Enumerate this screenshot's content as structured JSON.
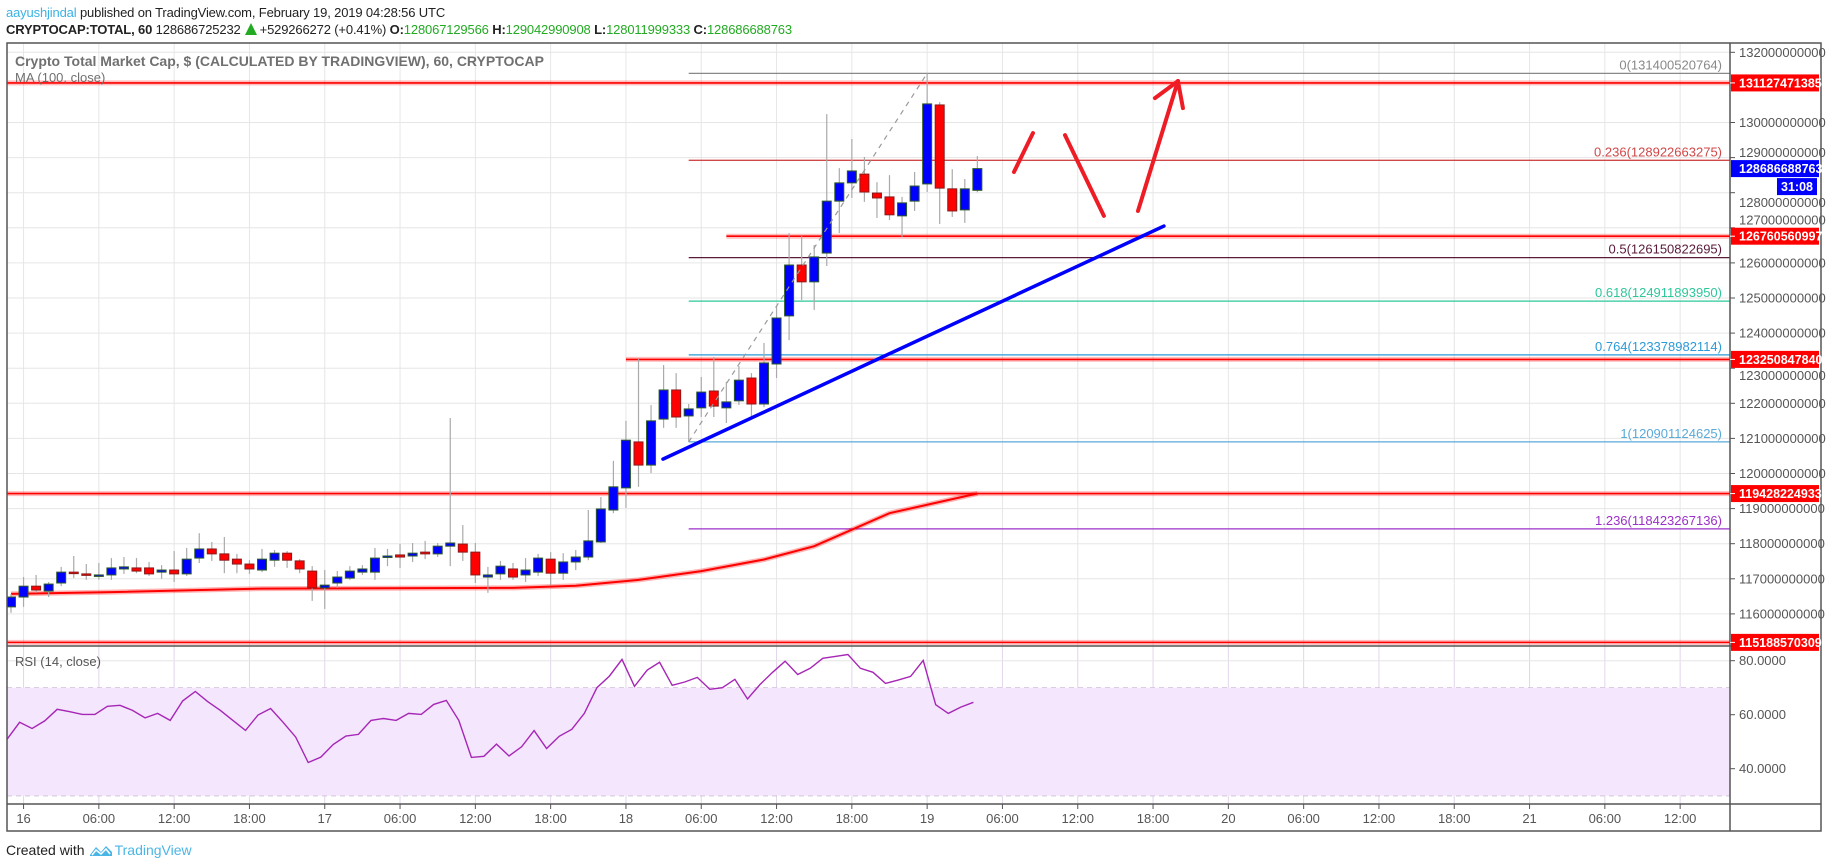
{
  "header": {
    "author": "aayushjindal",
    "published": "published on TradingView.com, February 19, 2019 04:28:56 UTC",
    "symbol": "CRYPTOCAP:TOTAL, 60",
    "last": "128686725232",
    "change_direction": "up",
    "change": "+529266272 (+0.41%)",
    "ohlc": [
      {
        "key": "O:",
        "value": "128067129566"
      },
      {
        "key": "H:",
        "value": "129042990908"
      },
      {
        "key": "L:",
        "value": "128011999333"
      },
      {
        "key": "C:",
        "value": "128686688763"
      }
    ]
  },
  "colors": {
    "up_candle": "#0000ff",
    "up_border": "#2d5a27",
    "down_candle": "#ff0000",
    "down_border": "#8b1a1a",
    "wick": "#aaaaaa",
    "ma": "#ff0000",
    "rsi": "#a626b5",
    "rsi_band_fill": "#f3e6fd",
    "trendline": "#0000ff",
    "arrows": "#ee1c25",
    "level": "#ff0000",
    "current_price": "#0000ff",
    "grid": "#e6e6e6"
  },
  "chart_data": {
    "type": "candlestick",
    "title": "Crypto Total Market Cap, $ (CALCULATED BY TRADINGVIEW), 60, CRYPTOCAP",
    "interval": "60",
    "grid": true,
    "y_ticks": [
      132000000000,
      130000000000,
      129000000000,
      128000000000,
      127000000000,
      126000000000,
      125000000000,
      124000000000,
      123000000000,
      122000000000,
      121000000000,
      120000000000,
      119000000000,
      118000000000,
      117000000000,
      116000000000
    ],
    "x_ticks": [
      {
        "t": "16 00:00",
        "label": "16"
      },
      {
        "t": "16 06:00",
        "label": "06:00"
      },
      {
        "t": "16 12:00",
        "label": "12:00"
      },
      {
        "t": "16 18:00",
        "label": "18:00"
      },
      {
        "t": "17 00:00",
        "label": "17"
      },
      {
        "t": "17 06:00",
        "label": "06:00"
      },
      {
        "t": "17 12:00",
        "label": "12:00"
      },
      {
        "t": "17 18:00",
        "label": "18:00"
      },
      {
        "t": "18 00:00",
        "label": "18"
      },
      {
        "t": "18 06:00",
        "label": "06:00"
      },
      {
        "t": "18 12:00",
        "label": "12:00"
      },
      {
        "t": "18 18:00",
        "label": "18:00"
      },
      {
        "t": "19 00:00",
        "label": "19"
      },
      {
        "t": "19 06:00",
        "label": "06:00"
      },
      {
        "t": "19 12:00",
        "label": "12:00"
      },
      {
        "t": "19 18:00",
        "label": "18:00"
      },
      {
        "t": "20 00:00",
        "label": "20"
      },
      {
        "t": "20 06:00",
        "label": "06:00"
      },
      {
        "t": "20 12:00",
        "label": "12:00"
      },
      {
        "t": "20 18:00",
        "label": "18:00"
      },
      {
        "t": "21 00:00",
        "label": "21"
      },
      {
        "t": "21 06:00",
        "label": "06:00"
      },
      {
        "t": "21 12:00",
        "label": "12:00"
      }
    ],
    "candles_columns": [
      "time",
      "open",
      "high",
      "low",
      "close"
    ],
    "candles": [
      [
        "15 23:00",
        116200000000.0,
        116570000000.0,
        116030000000.0,
        116480000000.0
      ],
      [
        "16 00:00",
        116480000000.0,
        117050000000.0,
        116200000000.0,
        116790000000.0
      ],
      [
        "16 01:00",
        116790000000.0,
        117110000000.0,
        116600000000.0,
        116680000000.0
      ],
      [
        "16 02:00",
        116650000000.0,
        116910000000.0,
        116480000000.0,
        116850000000.0
      ],
      [
        "16 03:00",
        116880000000.0,
        117340000000.0,
        116790000000.0,
        117190000000.0
      ],
      [
        "16 04:00",
        117190000000.0,
        117650000000.0,
        117020000000.0,
        117160000000.0
      ],
      [
        "16 05:00",
        117140000000.0,
        117420000000.0,
        116970000000.0,
        117110000000.0
      ],
      [
        "16 06:00",
        117080000000.0,
        117450000000.0,
        116970000000.0,
        117110000000.0
      ],
      [
        "16 07:00",
        117110000000.0,
        117590000000.0,
        116970000000.0,
        117310000000.0
      ],
      [
        "16 08:00",
        117280000000.0,
        117620000000.0,
        117140000000.0,
        117340000000.0
      ],
      [
        "16 09:00",
        117310000000.0,
        117590000000.0,
        117160000000.0,
        117220000000.0
      ],
      [
        "16 10:00",
        117310000000.0,
        117480000000.0,
        117080000000.0,
        117140000000.0
      ],
      [
        "16 11:00",
        117190000000.0,
        117390000000.0,
        117000000000.0,
        117250000000.0
      ],
      [
        "16 12:00",
        117250000000.0,
        117790000000.0,
        116910000000.0,
        117140000000.0
      ],
      [
        "16 13:00",
        117140000000.0,
        117880000000.0,
        117080000000.0,
        117560000000.0
      ],
      [
        "16 14:00",
        117590000000.0,
        118300000000.0,
        117450000000.0,
        117850000000.0
      ],
      [
        "16 15:00",
        117850000000.0,
        118050000000.0,
        117510000000.0,
        117710000000.0
      ],
      [
        "16 16:00",
        117710000000.0,
        118190000000.0,
        117160000000.0,
        117530000000.0
      ],
      [
        "16 17:00",
        117560000000.0,
        117710000000.0,
        117160000000.0,
        117420000000.0
      ],
      [
        "16 18:00",
        117420000000.0,
        117530000000.0,
        117140000000.0,
        117280000000.0
      ],
      [
        "16 19:00",
        117250000000.0,
        117850000000.0,
        117190000000.0,
        117560000000.0
      ],
      [
        "16 20:00",
        117530000000.0,
        117820000000.0,
        117340000000.0,
        117730000000.0
      ],
      [
        "16 21:00",
        117730000000.0,
        117790000000.0,
        117310000000.0,
        117530000000.0
      ],
      [
        "16 22:00",
        117510000000.0,
        117560000000.0,
        117160000000.0,
        117280000000.0
      ],
      [
        "16 23:00",
        117220000000.0,
        117360000000.0,
        116370000000.0,
        116740000000.0
      ],
      [
        "17 00:00",
        116740000000.0,
        117250000000.0,
        116140000000.0,
        116820000000.0
      ],
      [
        "17 01:00",
        116880000000.0,
        117220000000.0,
        116740000000.0,
        117050000000.0
      ],
      [
        "17 02:00",
        117020000000.0,
        117360000000.0,
        116970000000.0,
        117220000000.0
      ],
      [
        "17 03:00",
        117190000000.0,
        117390000000.0,
        117110000000.0,
        117280000000.0
      ],
      [
        "17 04:00",
        117190000000.0,
        117880000000.0,
        116970000000.0,
        117590000000.0
      ],
      [
        "17 05:00",
        117620000000.0,
        117850000000.0,
        117360000000.0,
        117650000000.0
      ],
      [
        "17 06:00",
        117680000000.0,
        117990000000.0,
        117310000000.0,
        117620000000.0
      ],
      [
        "17 07:00",
        117650000000.0,
        118020000000.0,
        117480000000.0,
        117730000000.0
      ],
      [
        "17 08:00",
        117760000000.0,
        118080000000.0,
        117560000000.0,
        117710000000.0
      ],
      [
        "17 09:00",
        117710000000.0,
        118020000000.0,
        117620000000.0,
        117930000000.0
      ],
      [
        "17 10:00",
        117930000000.0,
        121580000000.0,
        117360000000.0,
        118020000000.0
      ],
      [
        "17 11:00",
        117990000000.0,
        118530000000.0,
        117510000000.0,
        117760000000.0
      ],
      [
        "17 12:00",
        117760000000.0,
        118020000000.0,
        116880000000.0,
        117110000000.0
      ],
      [
        "17 13:00",
        117050000000.0,
        117340000000.0,
        116600000000.0,
        117110000000.0
      ],
      [
        "17 14:00",
        117140000000.0,
        117510000000.0,
        116970000000.0,
        117360000000.0
      ],
      [
        "17 15:00",
        117280000000.0,
        117450000000.0,
        116970000000.0,
        117050000000.0
      ],
      [
        "17 16:00",
        117110000000.0,
        117590000000.0,
        116910000000.0,
        117250000000.0
      ],
      [
        "17 17:00",
        117190000000.0,
        117710000000.0,
        117080000000.0,
        117590000000.0
      ],
      [
        "17 18:00",
        117560000000.0,
        117760000000.0,
        116820000000.0,
        117160000000.0
      ],
      [
        "17 19:00",
        117160000000.0,
        117730000000.0,
        116970000000.0,
        117480000000.0
      ],
      [
        "17 20:00",
        117480000000.0,
        117820000000.0,
        117250000000.0,
        117620000000.0
      ],
      [
        "17 21:00",
        117620000000.0,
        118960000000.0,
        117530000000.0,
        118080000000.0
      ],
      [
        "17 22:00",
        118050000000.0,
        119330000000.0,
        118020000000.0,
        118990000000.0
      ],
      [
        "17 23:00",
        118960000000.0,
        120360000000.0,
        118870000000.0,
        119620000000.0
      ],
      [
        "18 00:00",
        119590000000.0,
        121500000000.0,
        119020000000.0,
        120950000000.0
      ],
      [
        "18 01:00",
        120900000000.0,
        123260000000.0,
        119620000000.0,
        120240000000.0
      ],
      [
        "18 02:00",
        120240000000.0,
        121950000000.0,
        120010000000.0,
        121500000000.0
      ],
      [
        "18 03:00",
        121550000000.0,
        123090000000.0,
        121300000000.0,
        122380000000.0
      ],
      [
        "18 04:00",
        122380000000.0,
        122860000000.0,
        121300000000.0,
        121610000000.0
      ],
      [
        "18 05:00",
        121640000000.0,
        121980000000.0,
        120900000000.0,
        121840000000.0
      ],
      [
        "18 06:00",
        121870000000.0,
        122750000000.0,
        121610000000.0,
        122320000000.0
      ],
      [
        "18 07:00",
        122350000000.0,
        123320000000.0,
        121610000000.0,
        121920000000.0
      ],
      [
        "18 08:00",
        121870000000.0,
        122610000000.0,
        121440000000.0,
        122040000000.0
      ],
      [
        "18 09:00",
        122070000000.0,
        123060000000.0,
        121950000000.0,
        122660000000.0
      ],
      [
        "18 10:00",
        122720000000.0,
        122860000000.0,
        121610000000.0,
        121980000000.0
      ],
      [
        "18 11:00",
        121980000000.0,
        123720000000.0,
        121890000000.0,
        123150000000.0
      ],
      [
        "18 12:00",
        123120000000.0,
        124770000000.0,
        122720000000.0,
        124430000000.0
      ],
      [
        "18 13:00",
        124490000000.0,
        126850000000.0,
        123800000000.0,
        125940000000.0
      ],
      [
        "18 14:00",
        125940000000.0,
        126770000000.0,
        124940000000.0,
        125460000000.0
      ],
      [
        "18 15:00",
        125460000000.0,
        126510000000.0,
        124660000000.0,
        126170000000.0
      ],
      [
        "18 16:00",
        126280000000.0,
        130240000000.0,
        125910000000.0,
        127760000000.0
      ],
      [
        "18 17:00",
        127760000000.0,
        128700000000.0,
        126850000000.0,
        128280000000.0
      ],
      [
        "18 18:00",
        128280000000.0,
        129530000000.0,
        127850000000.0,
        128620000000.0
      ],
      [
        "18 19:00",
        128530000000.0,
        129020000000.0,
        127740000000.0,
        128020000000.0
      ],
      [
        "18 20:00",
        127990000000.0,
        128300000000.0,
        127280000000.0,
        127850000000.0
      ],
      [
        "18 21:00",
        127880000000.0,
        128500000000.0,
        127220000000.0,
        127370000000.0
      ],
      [
        "18 22:00",
        127340000000.0,
        127880000000.0,
        126740000000.0,
        127710000000.0
      ],
      [
        "18 23:00",
        127760000000.0,
        128590000000.0,
        127480000000.0,
        128190000000.0
      ],
      [
        "19 00:00",
        128250000000.0,
        131400000000.0,
        128020000000.0,
        130530000000.0
      ],
      [
        "19 01:00",
        130500000000.0,
        130580000000.0,
        127110000000.0,
        128130000000.0
      ],
      [
        "19 02:00",
        128110000000.0,
        128670000000.0,
        127310000000.0,
        127480000000.0
      ],
      [
        "19 03:00",
        127510000000.0,
        128390000000.0,
        127140000000.0,
        128110000000.0
      ],
      [
        "19 04:00",
        128067129566.0,
        129042990908.0,
        128011999333.0,
        128686688763.0
      ]
    ],
    "ma": {
      "label": "MA (100, close)",
      "points": [
        [
          "15 23:00",
          116570000000.0
        ],
        [
          "16 07:00",
          116620000000.0
        ],
        [
          "16 19:00",
          116720000000.0
        ],
        [
          "17 15:00",
          116740000000.0
        ],
        [
          "17 20:00",
          116800000000.0
        ],
        [
          "18 01:00",
          116970000000.0
        ],
        [
          "18 06:00",
          117220000000.0
        ],
        [
          "18 11:00",
          117550000000.0
        ],
        [
          "18 15:00",
          117930000000.0
        ],
        [
          "18 21:00",
          118870000000.0
        ],
        [
          "19 04:00",
          119430000000.0
        ]
      ]
    },
    "current_price": {
      "label": "128686688763",
      "value": 128686688763,
      "countdown": "31:08"
    },
    "horizontal_levels": [
      {
        "label": "131127471385",
        "value": 131127471385,
        "from": null
      },
      {
        "label": "126760560997",
        "value": 126760560997,
        "from": "18 08:00"
      },
      {
        "label": "123250847840",
        "value": 123250847840,
        "from": "18 00:00"
      },
      {
        "label": "119428224933",
        "value": 119428224933,
        "from": null
      },
      {
        "label": "115188570309",
        "value": 115188570309,
        "from": null
      }
    ],
    "fibonacci": {
      "from": "18 05:00",
      "levels": [
        {
          "label": "0(131400520764)",
          "ratio": 0,
          "value": 131400520764,
          "color": "#888888"
        },
        {
          "label": "0.236(128922663275)",
          "ratio": 0.236,
          "value": 128922663275,
          "color": "#d04848"
        },
        {
          "label": "0.5(126150822695)",
          "ratio": 0.5,
          "value": 126150822695,
          "color": "#5a1a3a"
        },
        {
          "label": "0.618(124911893950)",
          "ratio": 0.618,
          "value": 124911893950,
          "color": "#2ec79a"
        },
        {
          "label": "0.764(123378982114)",
          "ratio": 0.764,
          "value": 123378982114,
          "color": "#2a9ad8"
        },
        {
          "label": "1(120901124625)",
          "ratio": 1,
          "value": 120901124625,
          "color": "#5aaad8"
        },
        {
          "label": "1.236(118423267136)",
          "ratio": 1.236,
          "value": 118423267136,
          "color": "#9b30c8"
        }
      ]
    },
    "fib_trend": {
      "from": [
        "18 05:00",
        120901124625
      ],
      "to": [
        "19 00:00",
        131400520764
      ]
    },
    "support_trendline": {
      "from": [
        "18 02:57",
        120410000000.0
      ],
      "to": [
        "19 18:52",
        127050000000.0
      ]
    },
    "arrows": [
      {
        "from": [
          "19 06:55",
          128590000000.0
        ],
        "to": [
          "19 08:26",
          129700000000.0
        ],
        "head": false
      },
      {
        "from": [
          "19 10:59",
          129640000000.0
        ],
        "to": [
          "19 14:05",
          127340000000.0
        ],
        "head": false
      },
      {
        "from": [
          "19 16:48",
          127480000000.0
        ],
        "to": [
          "19 19:59",
          131180000000.0
        ],
        "head": true
      }
    ],
    "rsi": {
      "label": "RSI (14, close)",
      "ticks": [
        "80.0000",
        "60.0000",
        "40.0000"
      ],
      "tick_values": [
        80,
        60,
        40
      ],
      "bands": [
        70,
        30
      ],
      "values": [
        50.9,
        57.2,
        54.9,
        57.7,
        62.0,
        61.1,
        60.1,
        60.1,
        63.1,
        63.5,
        61.6,
        58.8,
        60.5,
        57.9,
        65.1,
        68.6,
        64.8,
        61.6,
        57.9,
        54.2,
        59.9,
        62.3,
        57.2,
        51.7,
        42.3,
        44.3,
        49.0,
        52.1,
        52.7,
        57.9,
        58.6,
        57.9,
        60.5,
        60.1,
        63.8,
        65.3,
        57.9,
        44.2,
        44.6,
        49.1,
        44.7,
        48.1,
        54.1,
        47.5,
        52.0,
        54.6,
        60.5,
        70.0,
        74.3,
        80.5,
        70.5,
        76.5,
        79.4,
        70.9,
        72.1,
        73.8,
        69.4,
        70.0,
        73.1,
        65.8,
        71.2,
        75.7,
        79.8,
        74.9,
        77.2,
        80.9,
        81.6,
        82.3,
        77.2,
        75.7,
        71.6,
        72.8,
        74.2,
        80.1,
        63.7,
        60.5,
        62.8,
        64.6
      ]
    }
  },
  "footer": {
    "created_with": "Created with",
    "brand": "TradingView",
    "logo": "tradingview-cloud-logo"
  }
}
